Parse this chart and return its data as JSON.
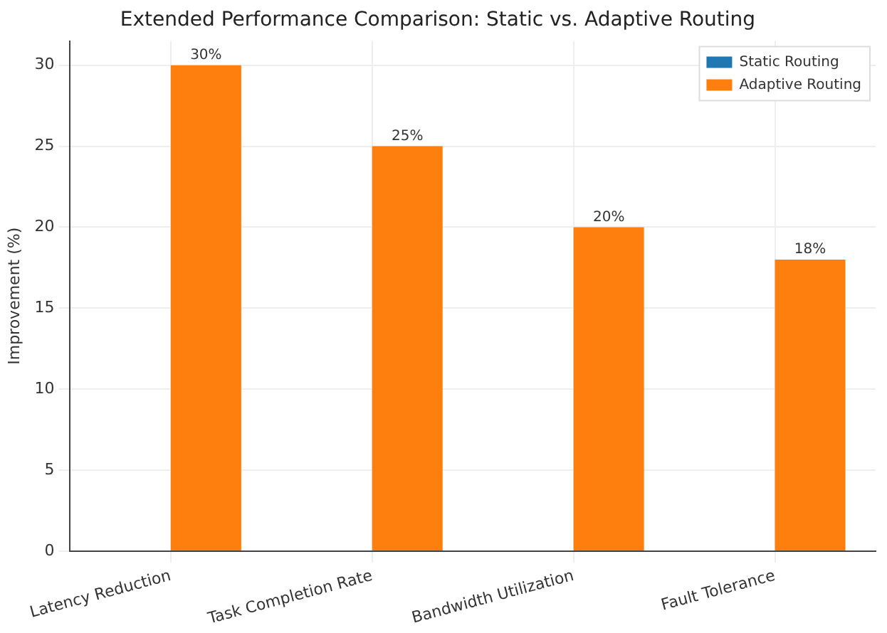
{
  "chart_data": {
    "type": "bar",
    "title": "Extended Performance Comparison: Static vs. Adaptive Routing",
    "ylabel": "Improvement (%)",
    "categories": [
      "Latency Reduction",
      "Task Completion Rate",
      "Bandwidth Utilization",
      "Fault Tolerance"
    ],
    "series": [
      {
        "name": "Static Routing",
        "color": "#1f77b4",
        "values": [
          0,
          0,
          0,
          0
        ]
      },
      {
        "name": "Adaptive Routing",
        "color": "#ff7f0e",
        "values": [
          30,
          25,
          20,
          18
        ],
        "value_labels": [
          "30%",
          "25%",
          "20%",
          "18%"
        ]
      }
    ],
    "ylim": [
      0,
      31.5
    ],
    "yticks": [
      0,
      5,
      10,
      15,
      20,
      25,
      30
    ],
    "grid": true,
    "legend": "top right"
  }
}
